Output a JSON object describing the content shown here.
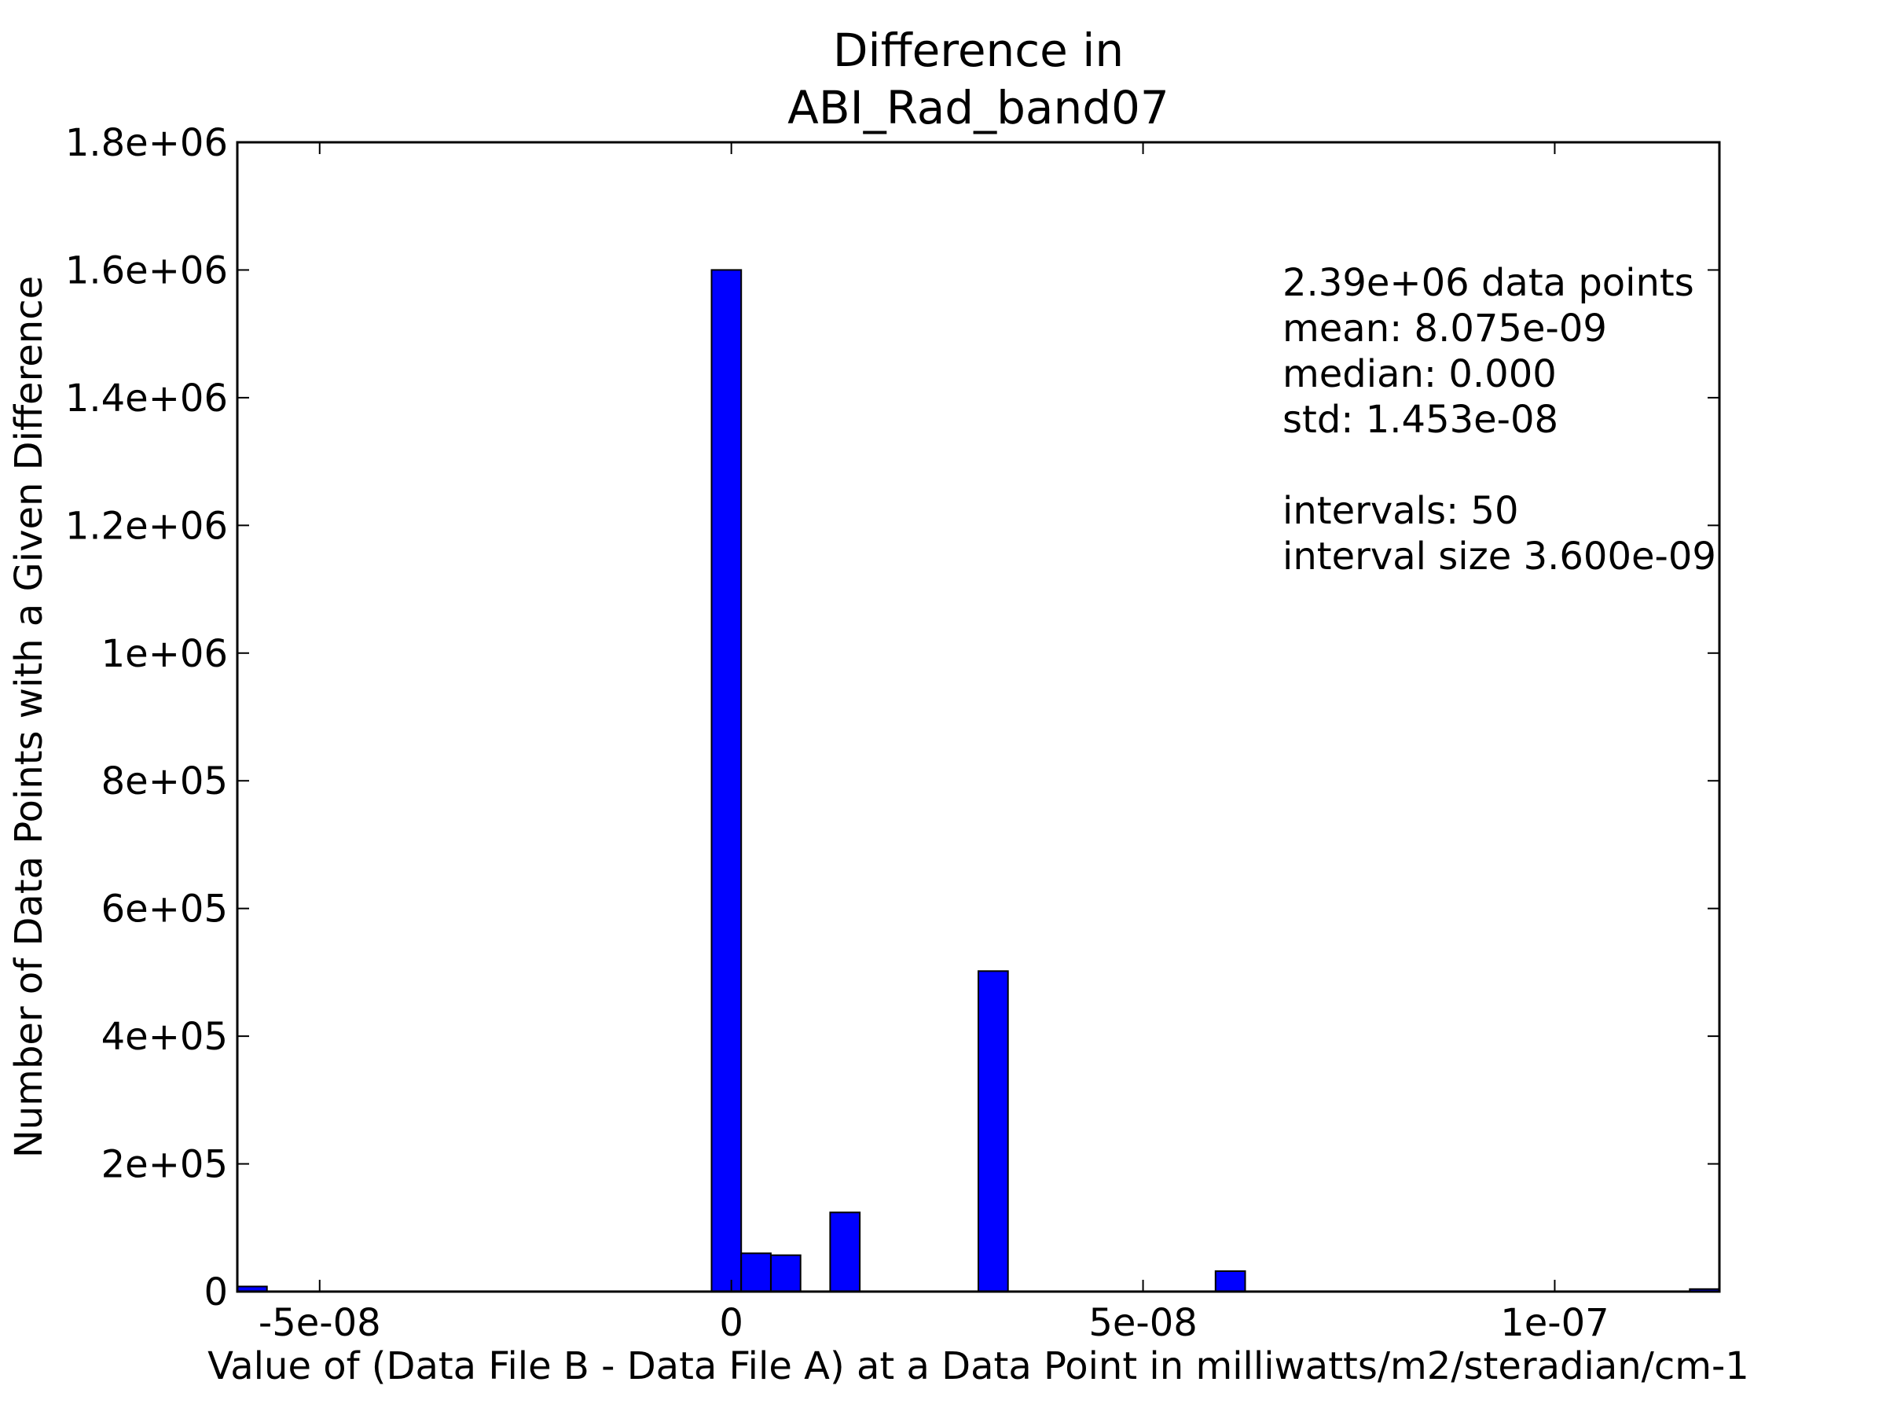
{
  "chart_data": {
    "type": "bar",
    "title_lines": [
      "Difference in",
      "ABI_Rad_band07"
    ],
    "xlabel": "Value of (Data File B - Data File A) at a Data Point in milliwatts/m2/steradian/cm-1",
    "ylabel": "Number of Data Points with a Given Difference",
    "xlim": [
      -6e-08,
      1.2e-07
    ],
    "ylim": [
      0,
      1800000
    ],
    "bin_width": 3.6e-09,
    "bar_color": "#0000ff",
    "edge_color": "#000000",
    "grid": false,
    "x_ticks": [
      {
        "value": -5e-08,
        "label": "-5e-08"
      },
      {
        "value": 0,
        "label": "0"
      },
      {
        "value": 5e-08,
        "label": "5e-08"
      },
      {
        "value": 1e-07,
        "label": "1e-07"
      }
    ],
    "y_ticks": [
      {
        "value": 0,
        "label": "0"
      },
      {
        "value": 200000,
        "label": "2e+05"
      },
      {
        "value": 400000,
        "label": "4e+05"
      },
      {
        "value": 600000,
        "label": "6e+05"
      },
      {
        "value": 800000,
        "label": "8e+05"
      },
      {
        "value": 1000000,
        "label": "1e+06"
      },
      {
        "value": 1200000,
        "label": "1.2e+06"
      },
      {
        "value": 1400000,
        "label": "1.4e+06"
      },
      {
        "value": 1600000,
        "label": "1.6e+06"
      },
      {
        "value": 1800000,
        "label": "1.8e+06"
      }
    ],
    "bars": [
      {
        "x_start": -6e-08,
        "value": 8000
      },
      {
        "x_start": -2.4e-09,
        "value": 1600000
      },
      {
        "x_start": 1.2e-09,
        "value": 60000
      },
      {
        "x_start": 4.8e-09,
        "value": 57000
      },
      {
        "x_start": 1.2e-08,
        "value": 124000
      },
      {
        "x_start": 3e-08,
        "value": 502000
      },
      {
        "x_start": 5.88e-08,
        "value": 32000
      },
      {
        "x_start": 1.164e-07,
        "value": 4000
      }
    ],
    "annotation_lines": [
      "2.39e+06 data points",
      "mean: 8.075e-09",
      "median: 0.000",
      "std: 1.453e-08",
      "",
      "intervals: 50",
      "interval size 3.600e-09"
    ]
  }
}
